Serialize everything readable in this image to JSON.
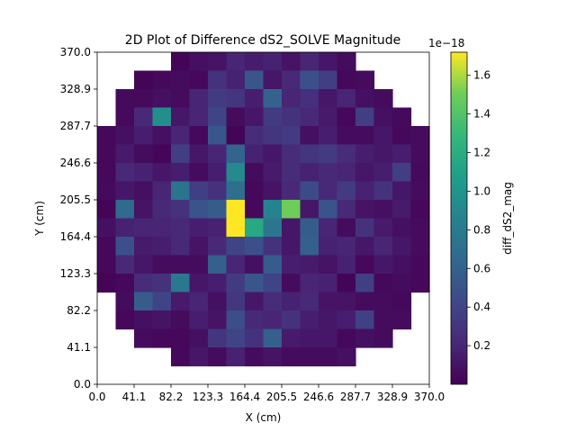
{
  "chart_data": {
    "type": "heatmap",
    "title": "2D Plot of Difference dS2_SOLVE Magnitude",
    "xlabel": "X (cm)",
    "ylabel": "Y (cm)",
    "xlim": [
      0,
      370
    ],
    "ylim": [
      0,
      370
    ],
    "x_ticks": [
      "0.0",
      "41.1",
      "82.2",
      "123.3",
      "164.4",
      "205.5",
      "246.6",
      "287.7",
      "328.9",
      "370.0"
    ],
    "y_ticks": [
      "0.0",
      "41.1",
      "82.2",
      "123.3",
      "164.4",
      "205.5",
      "246.6",
      "287.7",
      "328.9",
      "370.0"
    ],
    "colorbar": {
      "label": "diff_dS2_mag",
      "offset_text": "1e−18",
      "ticks": [
        "0.2",
        "0.4",
        "0.6",
        "0.8",
        "1.0",
        "1.2",
        "1.4",
        "1.6"
      ],
      "tick_values": [
        0.2,
        0.4,
        0.6,
        0.8,
        1.0,
        1.2,
        1.4,
        1.6
      ],
      "vmin": 0.0,
      "vmax": 1.72,
      "colormap": "viridis"
    },
    "grid_size": 18,
    "missing_value": null,
    "rows_top_to_bottom": [
      [
        null,
        null,
        null,
        null,
        0.02,
        0.08,
        0.1,
        0.2,
        0.15,
        0.18,
        0.1,
        0.2,
        0.12,
        0.06,
        null,
        null,
        null,
        null
      ],
      [
        null,
        null,
        0.02,
        0.04,
        0.06,
        0.04,
        0.28,
        0.18,
        0.52,
        0.12,
        0.22,
        0.48,
        0.36,
        0.04,
        0.06,
        null,
        null,
        null
      ],
      [
        null,
        0.05,
        0.05,
        0.08,
        0.06,
        0.2,
        0.34,
        0.3,
        0.16,
        0.6,
        0.2,
        0.26,
        0.12,
        0.2,
        0.08,
        0.06,
        null,
        null
      ],
      [
        null,
        0.05,
        0.22,
        0.96,
        0.12,
        0.2,
        0.4,
        0.06,
        0.12,
        0.34,
        0.28,
        0.22,
        0.14,
        0.04,
        0.36,
        0.08,
        0.05,
        null
      ],
      [
        0.04,
        0.08,
        0.16,
        0.08,
        0.2,
        0.04,
        0.52,
        0.02,
        0.24,
        0.3,
        0.34,
        0.08,
        0.16,
        0.06,
        0.06,
        0.12,
        0.04,
        0.06
      ],
      [
        0.04,
        0.14,
        0.06,
        0.03,
        0.36,
        0.12,
        0.2,
        0.62,
        0.18,
        0.12,
        0.24,
        0.3,
        0.34,
        0.24,
        0.16,
        0.12,
        0.16,
        0.06
      ],
      [
        0.04,
        0.22,
        0.18,
        0.12,
        0.16,
        0.06,
        0.16,
        0.92,
        0.06,
        0.14,
        0.24,
        0.18,
        0.22,
        0.2,
        0.12,
        0.16,
        0.36,
        0.05
      ],
      [
        0.05,
        0.12,
        0.08,
        0.2,
        0.74,
        0.36,
        0.28,
        0.7,
        0.04,
        0.1,
        0.22,
        0.44,
        0.22,
        0.34,
        0.18,
        0.28,
        0.12,
        0.06
      ],
      [
        0.02,
        0.66,
        0.1,
        0.22,
        0.28,
        0.5,
        0.56,
        1.72,
        0.04,
        0.86,
        1.5,
        0.12,
        0.5,
        0.22,
        0.1,
        0.08,
        0.14,
        0.04
      ],
      [
        0.08,
        0.18,
        0.2,
        0.2,
        0.22,
        0.16,
        0.18,
        1.72,
        1.16,
        0.76,
        0.12,
        0.56,
        0.2,
        0.06,
        0.28,
        0.14,
        0.08,
        0.06
      ],
      [
        0.04,
        0.48,
        0.14,
        0.16,
        0.22,
        0.1,
        0.22,
        0.4,
        0.48,
        0.28,
        0.12,
        0.58,
        0.18,
        0.2,
        0.12,
        0.2,
        0.12,
        0.06
      ],
      [
        0.04,
        0.22,
        0.12,
        0.06,
        0.06,
        0.06,
        0.58,
        0.2,
        0.08,
        0.56,
        0.16,
        0.14,
        0.1,
        0.18,
        0.04,
        0.12,
        0.08,
        0.04
      ],
      [
        0.02,
        0.04,
        0.24,
        0.28,
        0.78,
        0.12,
        0.16,
        0.34,
        0.52,
        0.4,
        0.06,
        0.2,
        0.18,
        0.02,
        0.36,
        0.04,
        0.06,
        0.04
      ],
      [
        null,
        0.06,
        0.56,
        0.4,
        0.14,
        0.2,
        0.08,
        0.32,
        0.12,
        0.24,
        0.18,
        0.22,
        0.1,
        0.1,
        0.06,
        0.06,
        0.04,
        null
      ],
      [
        null,
        0.04,
        0.08,
        0.1,
        0.06,
        0.16,
        0.1,
        0.46,
        0.22,
        0.2,
        0.28,
        0.16,
        0.12,
        0.16,
        0.38,
        0.06,
        0.06,
        null
      ],
      [
        null,
        null,
        0.06,
        0.04,
        0.04,
        0.08,
        0.3,
        0.4,
        0.28,
        0.58,
        0.14,
        0.12,
        0.12,
        0.04,
        0.08,
        0.06,
        null,
        null
      ],
      [
        null,
        null,
        null,
        null,
        0.04,
        0.12,
        0.06,
        0.18,
        0.06,
        0.1,
        0.06,
        0.06,
        0.06,
        0.08,
        null,
        null,
        null,
        null
      ],
      [
        null,
        null,
        null,
        null,
        null,
        null,
        null,
        null,
        null,
        null,
        null,
        null,
        null,
        null,
        null,
        null,
        null,
        null
      ]
    ]
  }
}
